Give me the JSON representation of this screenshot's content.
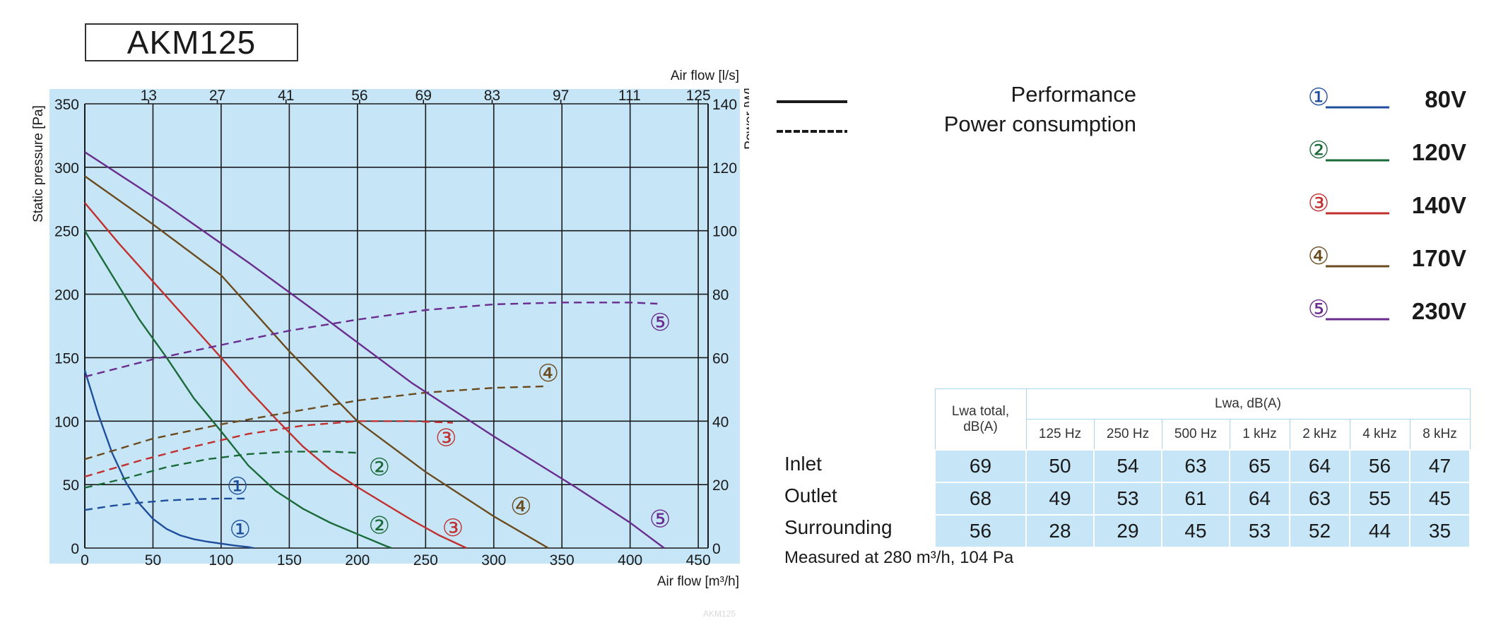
{
  "title": "AKM125",
  "watermark": "AKM125",
  "chart_data": {
    "type": "line",
    "title": "",
    "xlabel": "Air flow [m³/h]",
    "ylabel": "Static pressure [Pa]",
    "x2label": "Air flow [l/s]",
    "y2label": "Power [W]",
    "xlim": [
      0,
      480
    ],
    "ylim": [
      0,
      350
    ],
    "y2lim": [
      0,
      140
    ],
    "xticks": [
      0,
      50,
      100,
      150,
      200,
      250,
      300,
      350,
      400,
      450
    ],
    "yticks": [
      0,
      50,
      100,
      150,
      200,
      250,
      300,
      350
    ],
    "y2ticks": [
      0,
      20,
      40,
      60,
      80,
      100,
      120,
      140
    ],
    "x2ticks": [
      13,
      27,
      41,
      56,
      69,
      83,
      97,
      111,
      125
    ],
    "grid": true,
    "background": "#c6e6f8",
    "series": [
      {
        "id": "1",
        "voltage": "80V",
        "color": "#1f4e9c",
        "performance": [
          [
            0,
            140
          ],
          [
            10,
            105
          ],
          [
            20,
            75
          ],
          [
            30,
            52
          ],
          [
            40,
            35
          ],
          [
            50,
            23
          ],
          [
            60,
            15
          ],
          [
            70,
            10
          ],
          [
            80,
            7
          ],
          [
            90,
            5
          ],
          [
            100,
            3.5
          ],
          [
            110,
            2
          ],
          [
            120,
            0.8
          ],
          [
            124,
            0
          ]
        ],
        "power": [
          [
            0,
            12
          ],
          [
            20,
            13.3
          ],
          [
            40,
            14.3
          ],
          [
            60,
            15
          ],
          [
            80,
            15.4
          ],
          [
            100,
            15.6
          ],
          [
            120,
            15.6
          ]
        ],
        "perf_marker": [
          114,
          15
        ],
        "power_marker": [
          112,
          49
        ]
      },
      {
        "id": "2",
        "voltage": "120V",
        "color": "#1b6b3a",
        "performance": [
          [
            0,
            250
          ],
          [
            20,
            215
          ],
          [
            40,
            180
          ],
          [
            60,
            150
          ],
          [
            80,
            118
          ],
          [
            100,
            92
          ],
          [
            120,
            65
          ],
          [
            140,
            45
          ],
          [
            160,
            31
          ],
          [
            180,
            20
          ],
          [
            200,
            11
          ],
          [
            220,
            2
          ],
          [
            225,
            0
          ]
        ],
        "power": [
          [
            0,
            19
          ],
          [
            30,
            22
          ],
          [
            60,
            25.5
          ],
          [
            90,
            28
          ],
          [
            120,
            29.6
          ],
          [
            150,
            30.4
          ],
          [
            180,
            30.4
          ],
          [
            200,
            30
          ]
        ],
        "perf_marker": [
          216,
          18
        ],
        "power_marker": [
          216,
          64
        ]
      },
      {
        "id": "3",
        "voltage": "140V",
        "color": "#c0302f",
        "performance": [
          [
            0,
            272
          ],
          [
            25,
            240
          ],
          [
            50,
            210
          ],
          [
            75,
            180
          ],
          [
            100,
            150
          ],
          [
            120,
            125
          ],
          [
            140,
            102
          ],
          [
            160,
            80
          ],
          [
            180,
            62
          ],
          [
            200,
            48
          ],
          [
            220,
            35
          ],
          [
            240,
            22
          ],
          [
            260,
            10
          ],
          [
            280,
            0
          ]
        ],
        "power": [
          [
            0,
            22.5
          ],
          [
            40,
            27.5
          ],
          [
            80,
            32
          ],
          [
            120,
            36
          ],
          [
            160,
            38.6
          ],
          [
            200,
            40
          ],
          [
            240,
            40
          ],
          [
            270,
            39.5
          ]
        ],
        "perf_marker": [
          270,
          16
        ],
        "power_marker": [
          265,
          87
        ]
      },
      {
        "id": "4",
        "voltage": "170V",
        "color": "#6b4a1e",
        "performance": [
          [
            0,
            293
          ],
          [
            50,
            255
          ],
          [
            100,
            215
          ],
          [
            150,
            155
          ],
          [
            200,
            100
          ],
          [
            250,
            60
          ],
          [
            300,
            25
          ],
          [
            340,
            0
          ]
        ],
        "power": [
          [
            0,
            28
          ],
          [
            50,
            34.5
          ],
          [
            100,
            39
          ],
          [
            150,
            42.8
          ],
          [
            200,
            46.5
          ],
          [
            250,
            49
          ],
          [
            300,
            50.5
          ],
          [
            340,
            51
          ]
        ],
        "perf_marker": [
          320,
          33
        ],
        "power_marker": [
          340,
          138
        ]
      },
      {
        "id": "5",
        "voltage": "230V",
        "color": "#6a2c8e",
        "performance": [
          [
            0,
            312
          ],
          [
            60,
            270
          ],
          [
            120,
            225
          ],
          [
            180,
            178
          ],
          [
            240,
            130
          ],
          [
            300,
            88
          ],
          [
            360,
            48
          ],
          [
            400,
            20
          ],
          [
            425,
            0
          ]
        ],
        "power": [
          [
            0,
            54
          ],
          [
            50,
            59.5
          ],
          [
            100,
            64
          ],
          [
            150,
            68.5
          ],
          [
            200,
            72
          ],
          [
            250,
            75
          ],
          [
            300,
            76.8
          ],
          [
            350,
            77.4
          ],
          [
            400,
            77.4
          ],
          [
            420,
            77
          ]
        ],
        "perf_marker": [
          422,
          23
        ],
        "power_marker": [
          422,
          178
        ]
      }
    ]
  },
  "legend": {
    "performance_label": "Performance",
    "power_label": "Power consumption"
  },
  "table": {
    "total_header": "Lwa total, dB(A)",
    "band_header": "Lwa, dB(A)",
    "bands": [
      "125 Hz",
      "250 Hz",
      "500 Hz",
      "1 kHz",
      "2 kHz",
      "4 kHz",
      "8 kHz"
    ],
    "rows": [
      {
        "label": "Inlet",
        "total": "69",
        "values": [
          "50",
          "54",
          "63",
          "65",
          "64",
          "56",
          "47"
        ]
      },
      {
        "label": "Outlet",
        "total": "68",
        "values": [
          "49",
          "53",
          "61",
          "64",
          "63",
          "55",
          "45"
        ]
      },
      {
        "label": "Surrounding",
        "total": "56",
        "values": [
          "28",
          "29",
          "45",
          "53",
          "52",
          "44",
          "35"
        ]
      }
    ],
    "note": "Measured at 280 m³/h, 104 Pa"
  }
}
